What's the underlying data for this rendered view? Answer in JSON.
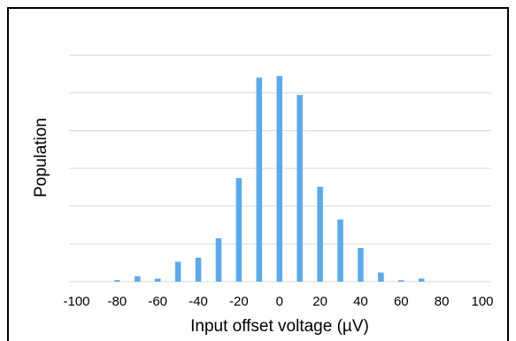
{
  "chart_data": {
    "type": "bar",
    "title": "",
    "xlabel": "Input offset voltage (µV)",
    "ylabel": "Population",
    "x_ticks": [
      "-100",
      "-80",
      "-60",
      "-40",
      "-20",
      "0",
      "20",
      "40",
      "60",
      "80",
      "100"
    ],
    "xlim": [
      -100,
      100
    ],
    "ylim": [
      0,
      100
    ],
    "ytick_step": 14.8,
    "ytick_labels_shown": false,
    "grid": true,
    "bar_color": "#5aaaf0",
    "categories": [
      -100,
      -90,
      -80,
      -70,
      -60,
      -50,
      -40,
      -30,
      -20,
      -10,
      0,
      10,
      20,
      30,
      40,
      50,
      60,
      70,
      80,
      90,
      100
    ],
    "values": [
      0,
      0,
      0.6,
      2.1,
      1.2,
      7.8,
      9.4,
      17.0,
      40.6,
      80.0,
      80.6,
      73.2,
      37.2,
      24.4,
      13.2,
      3.6,
      0.6,
      1.2,
      0,
      0,
      0
    ]
  }
}
